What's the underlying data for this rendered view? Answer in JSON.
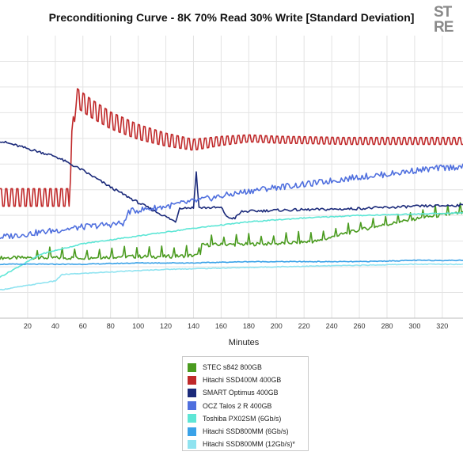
{
  "chart_data": {
    "type": "line",
    "title": "Preconditioning Curve - 8K 70% Read 30% Write [Standard Deviation]",
    "xlabel": "Minutes",
    "ylabel": "",
    "xlim": [
      0,
      335
    ],
    "ylim": [
      0,
      11
    ],
    "x_ticks": [
      20,
      40,
      60,
      80,
      100,
      120,
      140,
      160,
      180,
      200,
      220,
      240,
      260,
      280,
      300,
      320
    ],
    "grid": true,
    "legend_position": "bottom",
    "series": [
      {
        "name": "STEC s842 800GB",
        "color": "#4a9b1f",
        "points": [
          [
            0,
            2.35
          ],
          [
            20,
            2.35
          ],
          [
            40,
            2.35
          ],
          [
            60,
            2.35
          ],
          [
            90,
            2.4
          ],
          [
            120,
            2.4
          ],
          [
            145,
            2.45
          ],
          [
            146,
            2.85
          ],
          [
            200,
            2.9
          ],
          [
            230,
            3.0
          ],
          [
            250,
            3.3
          ],
          [
            270,
            3.55
          ],
          [
            290,
            3.75
          ],
          [
            310,
            3.95
          ],
          [
            335,
            4.1
          ]
        ]
      },
      {
        "name": "Hitachi SSD400M 400GB",
        "color": "#c0292a",
        "points": [
          [
            0,
            4.7
          ],
          [
            50,
            4.7
          ],
          [
            52,
            6.9
          ],
          [
            55,
            8.6
          ],
          [
            65,
            8.2
          ],
          [
            80,
            7.7
          ],
          [
            100,
            7.25
          ],
          [
            120,
            6.95
          ],
          [
            140,
            6.75
          ],
          [
            160,
            6.9
          ],
          [
            180,
            7.0
          ],
          [
            200,
            6.95
          ],
          [
            250,
            6.9
          ],
          [
            335,
            6.9
          ]
        ]
      },
      {
        "name": "SMART Optimus 400GB",
        "color": "#1b2a7a",
        "points": [
          [
            0,
            6.9
          ],
          [
            20,
            6.6
          ],
          [
            40,
            6.3
          ],
          [
            60,
            5.75
          ],
          [
            80,
            5.1
          ],
          [
            100,
            4.5
          ],
          [
            120,
            3.95
          ],
          [
            127,
            3.75
          ],
          [
            130,
            4.3
          ],
          [
            140,
            4.3
          ],
          [
            142,
            5.7
          ],
          [
            144,
            4.3
          ],
          [
            160,
            4.3
          ],
          [
            165,
            3.9
          ],
          [
            170,
            3.9
          ],
          [
            175,
            4.15
          ],
          [
            200,
            4.2
          ],
          [
            250,
            4.25
          ],
          [
            300,
            4.35
          ],
          [
            335,
            4.4
          ]
        ]
      },
      {
        "name": "OCZ Talos 2 R 400GB",
        "color": "#4f6fde",
        "points": [
          [
            0,
            3.15
          ],
          [
            30,
            3.35
          ],
          [
            60,
            3.55
          ],
          [
            90,
            3.7
          ],
          [
            93,
            4.15
          ],
          [
            120,
            4.35
          ],
          [
            140,
            4.55
          ],
          [
            160,
            4.75
          ],
          [
            180,
            4.95
          ],
          [
            200,
            5.1
          ],
          [
            220,
            5.2
          ],
          [
            240,
            5.35
          ],
          [
            260,
            5.5
          ],
          [
            280,
            5.6
          ],
          [
            300,
            5.75
          ],
          [
            320,
            5.85
          ],
          [
            335,
            5.9
          ]
        ]
      },
      {
        "name": "Toshiba PX02SM (6Gb/s)",
        "color": "#5ee6d6",
        "points": [
          [
            0,
            1.6
          ],
          [
            30,
            2.5
          ],
          [
            60,
            2.9
          ],
          [
            100,
            3.2
          ],
          [
            140,
            3.5
          ],
          [
            180,
            3.75
          ],
          [
            220,
            3.9
          ],
          [
            260,
            4.0
          ],
          [
            300,
            4.05
          ],
          [
            335,
            4.1
          ]
        ]
      },
      {
        "name": "Hitachi SSD800MM (6Gb/s)",
        "color": "#3aa2e8",
        "points": [
          [
            0,
            2.1
          ],
          [
            20,
            2.1
          ],
          [
            40,
            2.1
          ],
          [
            60,
            2.1
          ],
          [
            100,
            2.15
          ],
          [
            140,
            2.15
          ],
          [
            180,
            2.2
          ],
          [
            220,
            2.2
          ],
          [
            260,
            2.2
          ],
          [
            300,
            2.25
          ],
          [
            335,
            2.25
          ]
        ]
      },
      {
        "name": "Hitachi SSD800MM (12Gb/s)*",
        "color": "#8fe3f0",
        "points": [
          [
            0,
            1.1
          ],
          [
            40,
            1.45
          ],
          [
            45,
            1.7
          ],
          [
            80,
            1.8
          ],
          [
            120,
            1.9
          ],
          [
            160,
            1.95
          ],
          [
            200,
            2.0
          ],
          [
            250,
            2.05
          ],
          [
            300,
            2.1
          ],
          [
            335,
            2.1
          ]
        ]
      }
    ]
  },
  "logo_text": "STORAGE REVIEW"
}
